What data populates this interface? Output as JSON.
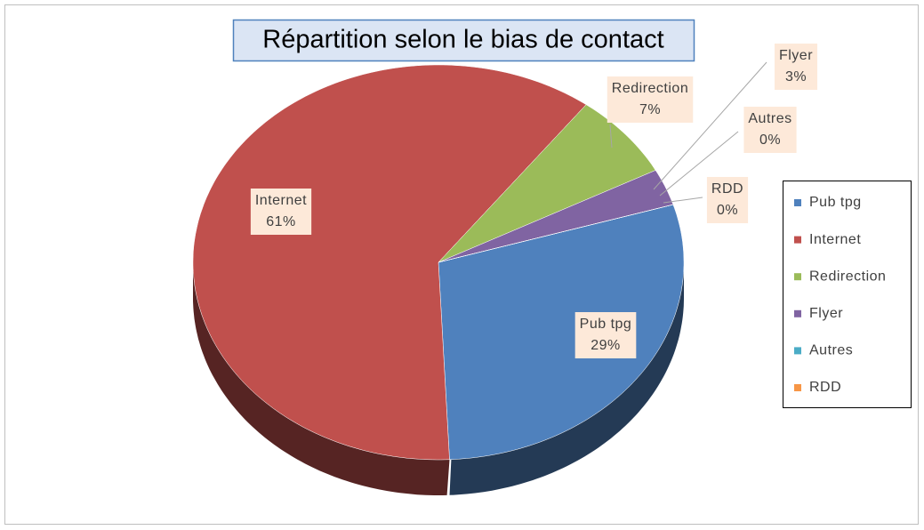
{
  "chart_data": {
    "type": "pie",
    "title": "Répartition selon le bias de contact",
    "categories": [
      "Pub tpg",
      "Internet",
      "Redirection",
      "Flyer",
      "Autres",
      "RDD"
    ],
    "values": [
      29,
      61,
      7,
      3,
      0,
      0
    ],
    "value_labels": [
      "29%",
      "61%",
      "7%",
      "3%",
      "0%",
      "0%"
    ],
    "colors": [
      "#4f81bd",
      "#c0504d",
      "#9bbb59",
      "#8064a2",
      "#4bacc6",
      "#f79646"
    ],
    "legend": "right"
  }
}
